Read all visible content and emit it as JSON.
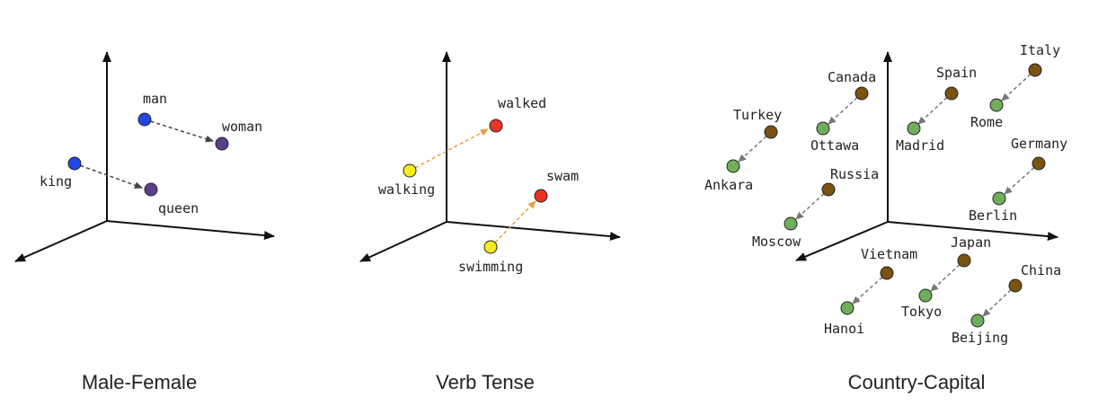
{
  "colors": {
    "male": "#1f47e6",
    "female": "#5a3f8a",
    "present": "#f5ee1a",
    "past": "#ea3323",
    "country": "#7a5212",
    "capital": "#6fae5a",
    "gender_arrow": "#444444",
    "tense_arrow": "#e8a040",
    "capital_arrow": "#777777",
    "axis": "#111111"
  },
  "panels": [
    {
      "title": "Male-Female",
      "relation": "gender",
      "pairs": [
        {
          "from": {
            "label": "man",
            "kind": "male"
          },
          "to": {
            "label": "woman",
            "kind": "female"
          }
        },
        {
          "from": {
            "label": "king",
            "kind": "male"
          },
          "to": {
            "label": "queen",
            "kind": "female"
          }
        }
      ]
    },
    {
      "title": "Verb Tense",
      "relation": "tense",
      "pairs": [
        {
          "from": {
            "label": "walking",
            "kind": "present"
          },
          "to": {
            "label": "walked",
            "kind": "past"
          }
        },
        {
          "from": {
            "label": "swimming",
            "kind": "present"
          },
          "to": {
            "label": "swam",
            "kind": "past"
          }
        }
      ]
    },
    {
      "title": "Country-Capital",
      "relation": "capital",
      "pairs": [
        {
          "from": {
            "label": "Turkey",
            "kind": "country"
          },
          "to": {
            "label": "Ankara",
            "kind": "capital"
          }
        },
        {
          "from": {
            "label": "Canada",
            "kind": "country"
          },
          "to": {
            "label": "Ottawa",
            "kind": "capital"
          }
        },
        {
          "from": {
            "label": "Spain",
            "kind": "country"
          },
          "to": {
            "label": "Madrid",
            "kind": "capital"
          }
        },
        {
          "from": {
            "label": "Italy",
            "kind": "country"
          },
          "to": {
            "label": "Rome",
            "kind": "capital"
          }
        },
        {
          "from": {
            "label": "Germany",
            "kind": "country"
          },
          "to": {
            "label": "Berlin",
            "kind": "capital"
          }
        },
        {
          "from": {
            "label": "Russia",
            "kind": "country"
          },
          "to": {
            "label": "Moscow",
            "kind": "capital"
          }
        },
        {
          "from": {
            "label": "Vietnam",
            "kind": "country"
          },
          "to": {
            "label": "Hanoi",
            "kind": "capital"
          }
        },
        {
          "from": {
            "label": "Japan",
            "kind": "country"
          },
          "to": {
            "label": "Tokyo",
            "kind": "capital"
          }
        },
        {
          "from": {
            "label": "China",
            "kind": "country"
          },
          "to": {
            "label": "Beijing",
            "kind": "capital"
          }
        }
      ]
    }
  ]
}
